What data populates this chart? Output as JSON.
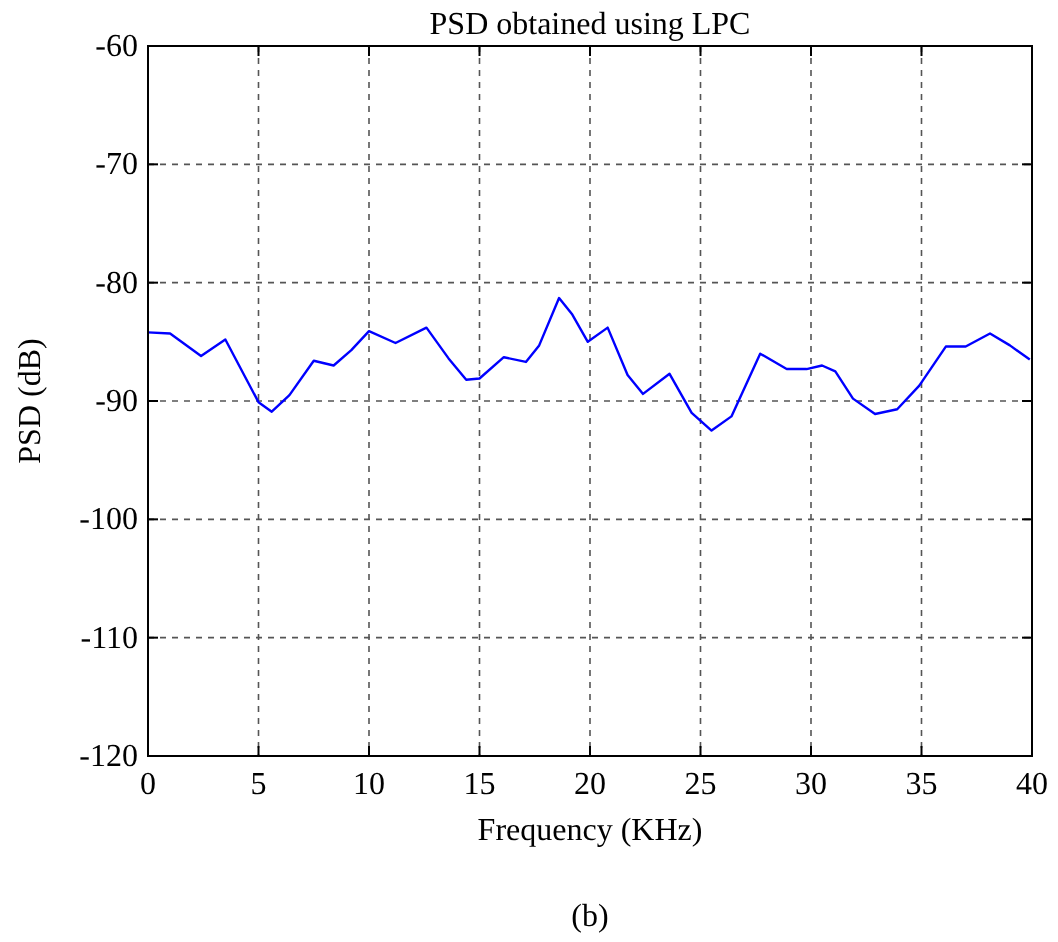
{
  "chart_data": {
    "type": "line",
    "title": "PSD obtained using LPC",
    "xlabel": "Frequency (KHz)",
    "ylabel": "PSD (dB)",
    "annotations": [
      "(b)"
    ],
    "x": [
      0,
      1.0,
      2.4,
      3.5,
      5,
      5.6,
      6.4,
      7.5,
      8.4,
      9.2,
      10,
      11.2,
      12.6,
      13.6,
      14.4,
      15,
      16.1,
      17.1,
      17.7,
      18.6,
      19.2,
      19.9,
      20.8,
      21.7,
      22.4,
      23.6,
      24.6,
      25.5,
      26.4,
      27.7,
      28.9,
      29.8,
      30.5,
      31.1,
      31.9,
      32.9,
      33.9,
      34.9,
      36.1,
      37.0,
      38.1,
      39.0,
      39.9
    ],
    "series": [
      {
        "color": "#0000ff",
        "values": [
          -84.2,
          -84.3,
          -86.2,
          -84.8,
          -90.1,
          -90.9,
          -89.5,
          -86.6,
          -87.0,
          -85.7,
          -84.1,
          -85.1,
          -83.8,
          -86.4,
          -88.2,
          -88.1,
          -86.3,
          -86.7,
          -85.3,
          -81.3,
          -82.7,
          -85.0,
          -83.8,
          -87.8,
          -89.4,
          -87.7,
          -91.0,
          -92.5,
          -91.3,
          -86.0,
          -87.3,
          -87.3,
          -87.0,
          -87.5,
          -89.8,
          -91.1,
          -90.7,
          -88.7,
          -85.4,
          -85.4,
          -84.3,
          -85.3,
          -86.5
        ]
      }
    ],
    "xlim": [
      0,
      40
    ],
    "xticks": [
      0,
      5,
      10,
      15,
      20,
      25,
      30,
      35,
      40
    ],
    "ylim": [
      -120,
      -60
    ],
    "yticks": [
      -120,
      -110,
      -100,
      -90,
      -80,
      -70,
      -60
    ],
    "grid": true,
    "line_style": "solid",
    "marker": "none"
  }
}
